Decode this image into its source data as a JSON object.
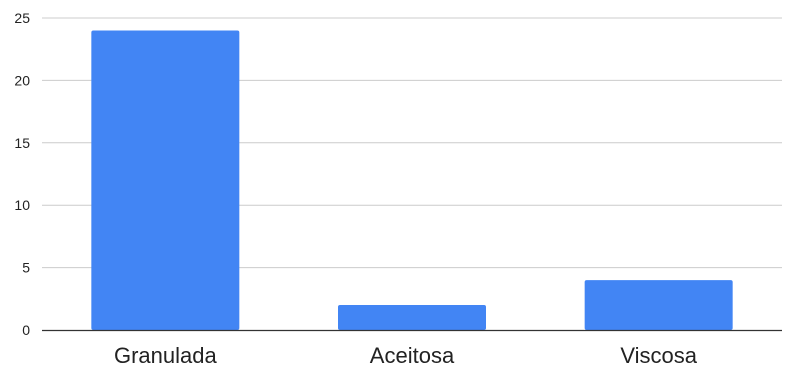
{
  "chart_data": {
    "type": "bar",
    "categories": [
      "Granulada",
      "Aceitosa",
      "Viscosa"
    ],
    "values": [
      24,
      2,
      4
    ],
    "ylim": [
      0,
      25
    ],
    "yticks": [
      0,
      5,
      10,
      15,
      20,
      25
    ],
    "ytick_labels": [
      "0",
      "5",
      "10",
      "15",
      "20",
      "25"
    ],
    "grid": true,
    "legend": "none",
    "bar_color": "#4285f4",
    "grid_color": "#cccccc",
    "axis_color": "#333333"
  }
}
